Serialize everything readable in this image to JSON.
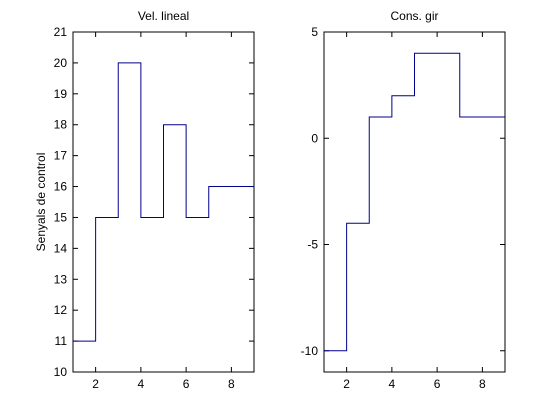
{
  "chart_data": [
    {
      "type": "line",
      "step": "post",
      "title": "Vel. lineal",
      "ylabel": "Senyals de control",
      "xlim": [
        1,
        9
      ],
      "ylim": [
        10,
        21
      ],
      "xticks": [
        2,
        4,
        6,
        8
      ],
      "yticks": [
        10,
        11,
        12,
        13,
        14,
        15,
        16,
        17,
        18,
        19,
        20,
        21
      ],
      "x": [
        1,
        2,
        3,
        4,
        5,
        6,
        7,
        8,
        9
      ],
      "values": [
        11,
        15,
        20,
        15,
        18,
        15,
        16,
        16,
        16
      ],
      "color": "#00008b"
    },
    {
      "type": "line",
      "step": "post",
      "title": "Cons. gir",
      "ylabel": "",
      "xlim": [
        1,
        9
      ],
      "ylim": [
        -11,
        5
      ],
      "xticks": [
        2,
        4,
        6,
        8
      ],
      "yticks": [
        -10,
        -5,
        0,
        5
      ],
      "x": [
        1,
        2,
        3,
        4,
        5,
        6,
        7,
        8,
        9
      ],
      "values": [
        -10,
        -4,
        1,
        2,
        4,
        4,
        1,
        1,
        1
      ],
      "color": "#00008b"
    }
  ]
}
